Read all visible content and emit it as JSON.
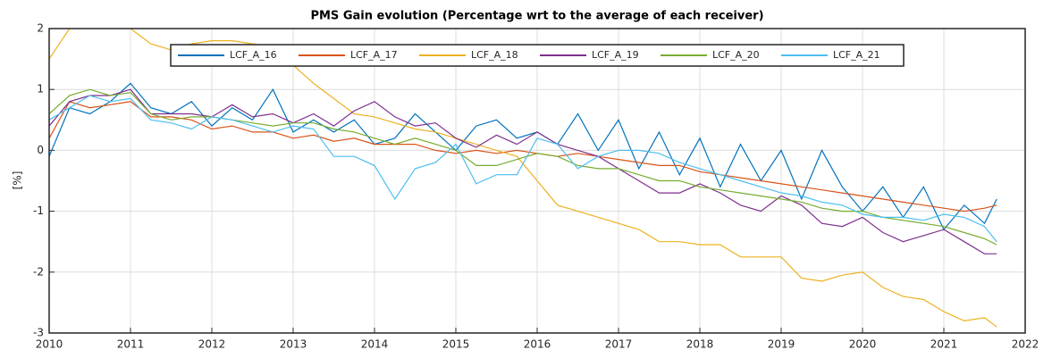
{
  "chart_data": {
    "type": "line",
    "title": "PMS Gain evolution (Percentage wrt to the average of each receiver)",
    "y_label": "[%]",
    "x": [
      2010,
      2010.25,
      2010.5,
      2010.75,
      2011,
      2011.25,
      2011.5,
      2011.75,
      2012,
      2012.25,
      2012.5,
      2012.75,
      2013,
      2013.25,
      2013.5,
      2013.75,
      2014,
      2014.25,
      2014.5,
      2014.75,
      2015,
      2015.25,
      2015.5,
      2015.75,
      2016,
      2016.25,
      2016.5,
      2016.75,
      2017,
      2017.25,
      2017.5,
      2017.75,
      2018,
      2018.25,
      2018.5,
      2018.75,
      2019,
      2019.25,
      2019.5,
      2019.75,
      2020,
      2020.25,
      2020.5,
      2020.75,
      2021,
      2021.25,
      2021.5,
      2021.65
    ],
    "series": [
      {
        "name": "LCF_A_16",
        "color": "#0072BD",
        "values": [
          -0.1,
          0.7,
          0.6,
          0.8,
          1.1,
          0.7,
          0.6,
          0.8,
          0.4,
          0.7,
          0.5,
          1.0,
          0.3,
          0.5,
          0.3,
          0.5,
          0.1,
          0.2,
          0.6,
          0.3,
          0.0,
          0.4,
          0.5,
          0.2,
          0.3,
          0.1,
          0.6,
          0.0,
          0.5,
          -0.3,
          0.3,
          -0.4,
          0.2,
          -0.6,
          0.1,
          -0.5,
          0.0,
          -0.8,
          0.0,
          -0.6,
          -1.0,
          -0.6,
          -1.1,
          -0.6,
          -1.3,
          -0.9,
          -1.2,
          -0.8
        ]
      },
      {
        "name": "LCF_A_17",
        "color": "#D95319",
        "values": [
          0.2,
          0.8,
          0.7,
          0.75,
          0.8,
          0.55,
          0.55,
          0.5,
          0.35,
          0.4,
          0.3,
          0.3,
          0.2,
          0.25,
          0.15,
          0.2,
          0.1,
          0.1,
          0.1,
          0.0,
          -0.05,
          0.0,
          -0.05,
          0.0,
          -0.05,
          -0.1,
          -0.05,
          -0.1,
          -0.15,
          -0.2,
          -0.25,
          -0.25,
          -0.35,
          -0.4,
          -0.45,
          -0.5,
          -0.55,
          -0.6,
          -0.65,
          -0.7,
          -0.75,
          -0.8,
          -0.85,
          -0.9,
          -0.95,
          -1.0,
          -0.95,
          -0.9
        ]
      },
      {
        "name": "LCF_A_18",
        "color": "#EDB120",
        "values": [
          1.5,
          2.0,
          2.2,
          2.3,
          2.0,
          1.75,
          1.65,
          1.75,
          1.8,
          1.8,
          1.75,
          1.7,
          1.4,
          1.1,
          0.85,
          0.6,
          0.55,
          0.45,
          0.35,
          0.3,
          0.2,
          0.1,
          0.0,
          -0.1,
          -0.5,
          -0.9,
          -1.0,
          -1.1,
          -1.2,
          -1.3,
          -1.5,
          -1.5,
          -1.55,
          -1.55,
          -1.75,
          -1.75,
          -1.75,
          -2.1,
          -2.15,
          -2.05,
          -2.0,
          -2.25,
          -2.4,
          -2.45,
          -2.65,
          -2.8,
          -2.75,
          -2.9
        ]
      },
      {
        "name": "LCF_A_19",
        "color": "#7E2F8E",
        "values": [
          0.4,
          0.8,
          0.9,
          0.9,
          1.0,
          0.6,
          0.6,
          0.6,
          0.55,
          0.75,
          0.55,
          0.6,
          0.45,
          0.6,
          0.4,
          0.65,
          0.8,
          0.55,
          0.4,
          0.45,
          0.2,
          0.05,
          0.25,
          0.1,
          0.3,
          0.1,
          0.0,
          -0.1,
          -0.3,
          -0.5,
          -0.7,
          -0.7,
          -0.55,
          -0.7,
          -0.9,
          -1.0,
          -0.75,
          -0.9,
          -1.2,
          -1.25,
          -1.1,
          -1.35,
          -1.5,
          -1.4,
          -1.3,
          -1.5,
          -1.7,
          -1.7
        ]
      },
      {
        "name": "LCF_A_20",
        "color": "#77AC30",
        "values": [
          0.6,
          0.9,
          1.0,
          0.9,
          0.95,
          0.6,
          0.5,
          0.55,
          0.55,
          0.5,
          0.45,
          0.4,
          0.45,
          0.45,
          0.35,
          0.3,
          0.2,
          0.1,
          0.2,
          0.1,
          0.0,
          -0.25,
          -0.25,
          -0.15,
          -0.05,
          -0.1,
          -0.25,
          -0.3,
          -0.3,
          -0.4,
          -0.5,
          -0.5,
          -0.6,
          -0.65,
          -0.7,
          -0.75,
          -0.8,
          -0.85,
          -0.95,
          -1.0,
          -1.0,
          -1.1,
          -1.15,
          -1.2,
          -1.25,
          -1.35,
          -1.45,
          -1.55
        ]
      },
      {
        "name": "LCF_A_21",
        "color": "#4DBEEE",
        "values": [
          0.5,
          0.7,
          0.9,
          0.8,
          0.85,
          0.5,
          0.45,
          0.35,
          0.55,
          0.5,
          0.4,
          0.3,
          0.4,
          0.35,
          -0.1,
          -0.1,
          -0.25,
          -0.8,
          -0.3,
          -0.2,
          0.1,
          -0.55,
          -0.4,
          -0.4,
          0.2,
          0.1,
          -0.3,
          -0.1,
          0.0,
          0.0,
          -0.05,
          -0.2,
          -0.3,
          -0.4,
          -0.5,
          -0.6,
          -0.7,
          -0.75,
          -0.85,
          -0.9,
          -1.05,
          -1.1,
          -1.1,
          -1.15,
          -1.05,
          -1.1,
          -1.25,
          -1.5
        ]
      }
    ],
    "xlim": [
      2010,
      2022
    ],
    "ylim": [
      -3,
      2
    ],
    "xticks": [
      2010,
      2011,
      2012,
      2013,
      2014,
      2015,
      2016,
      2017,
      2018,
      2019,
      2020,
      2021,
      2022
    ],
    "yticks": [
      -3,
      -2,
      -1,
      0,
      1,
      2
    ],
    "grid": true,
    "legend": "north"
  }
}
